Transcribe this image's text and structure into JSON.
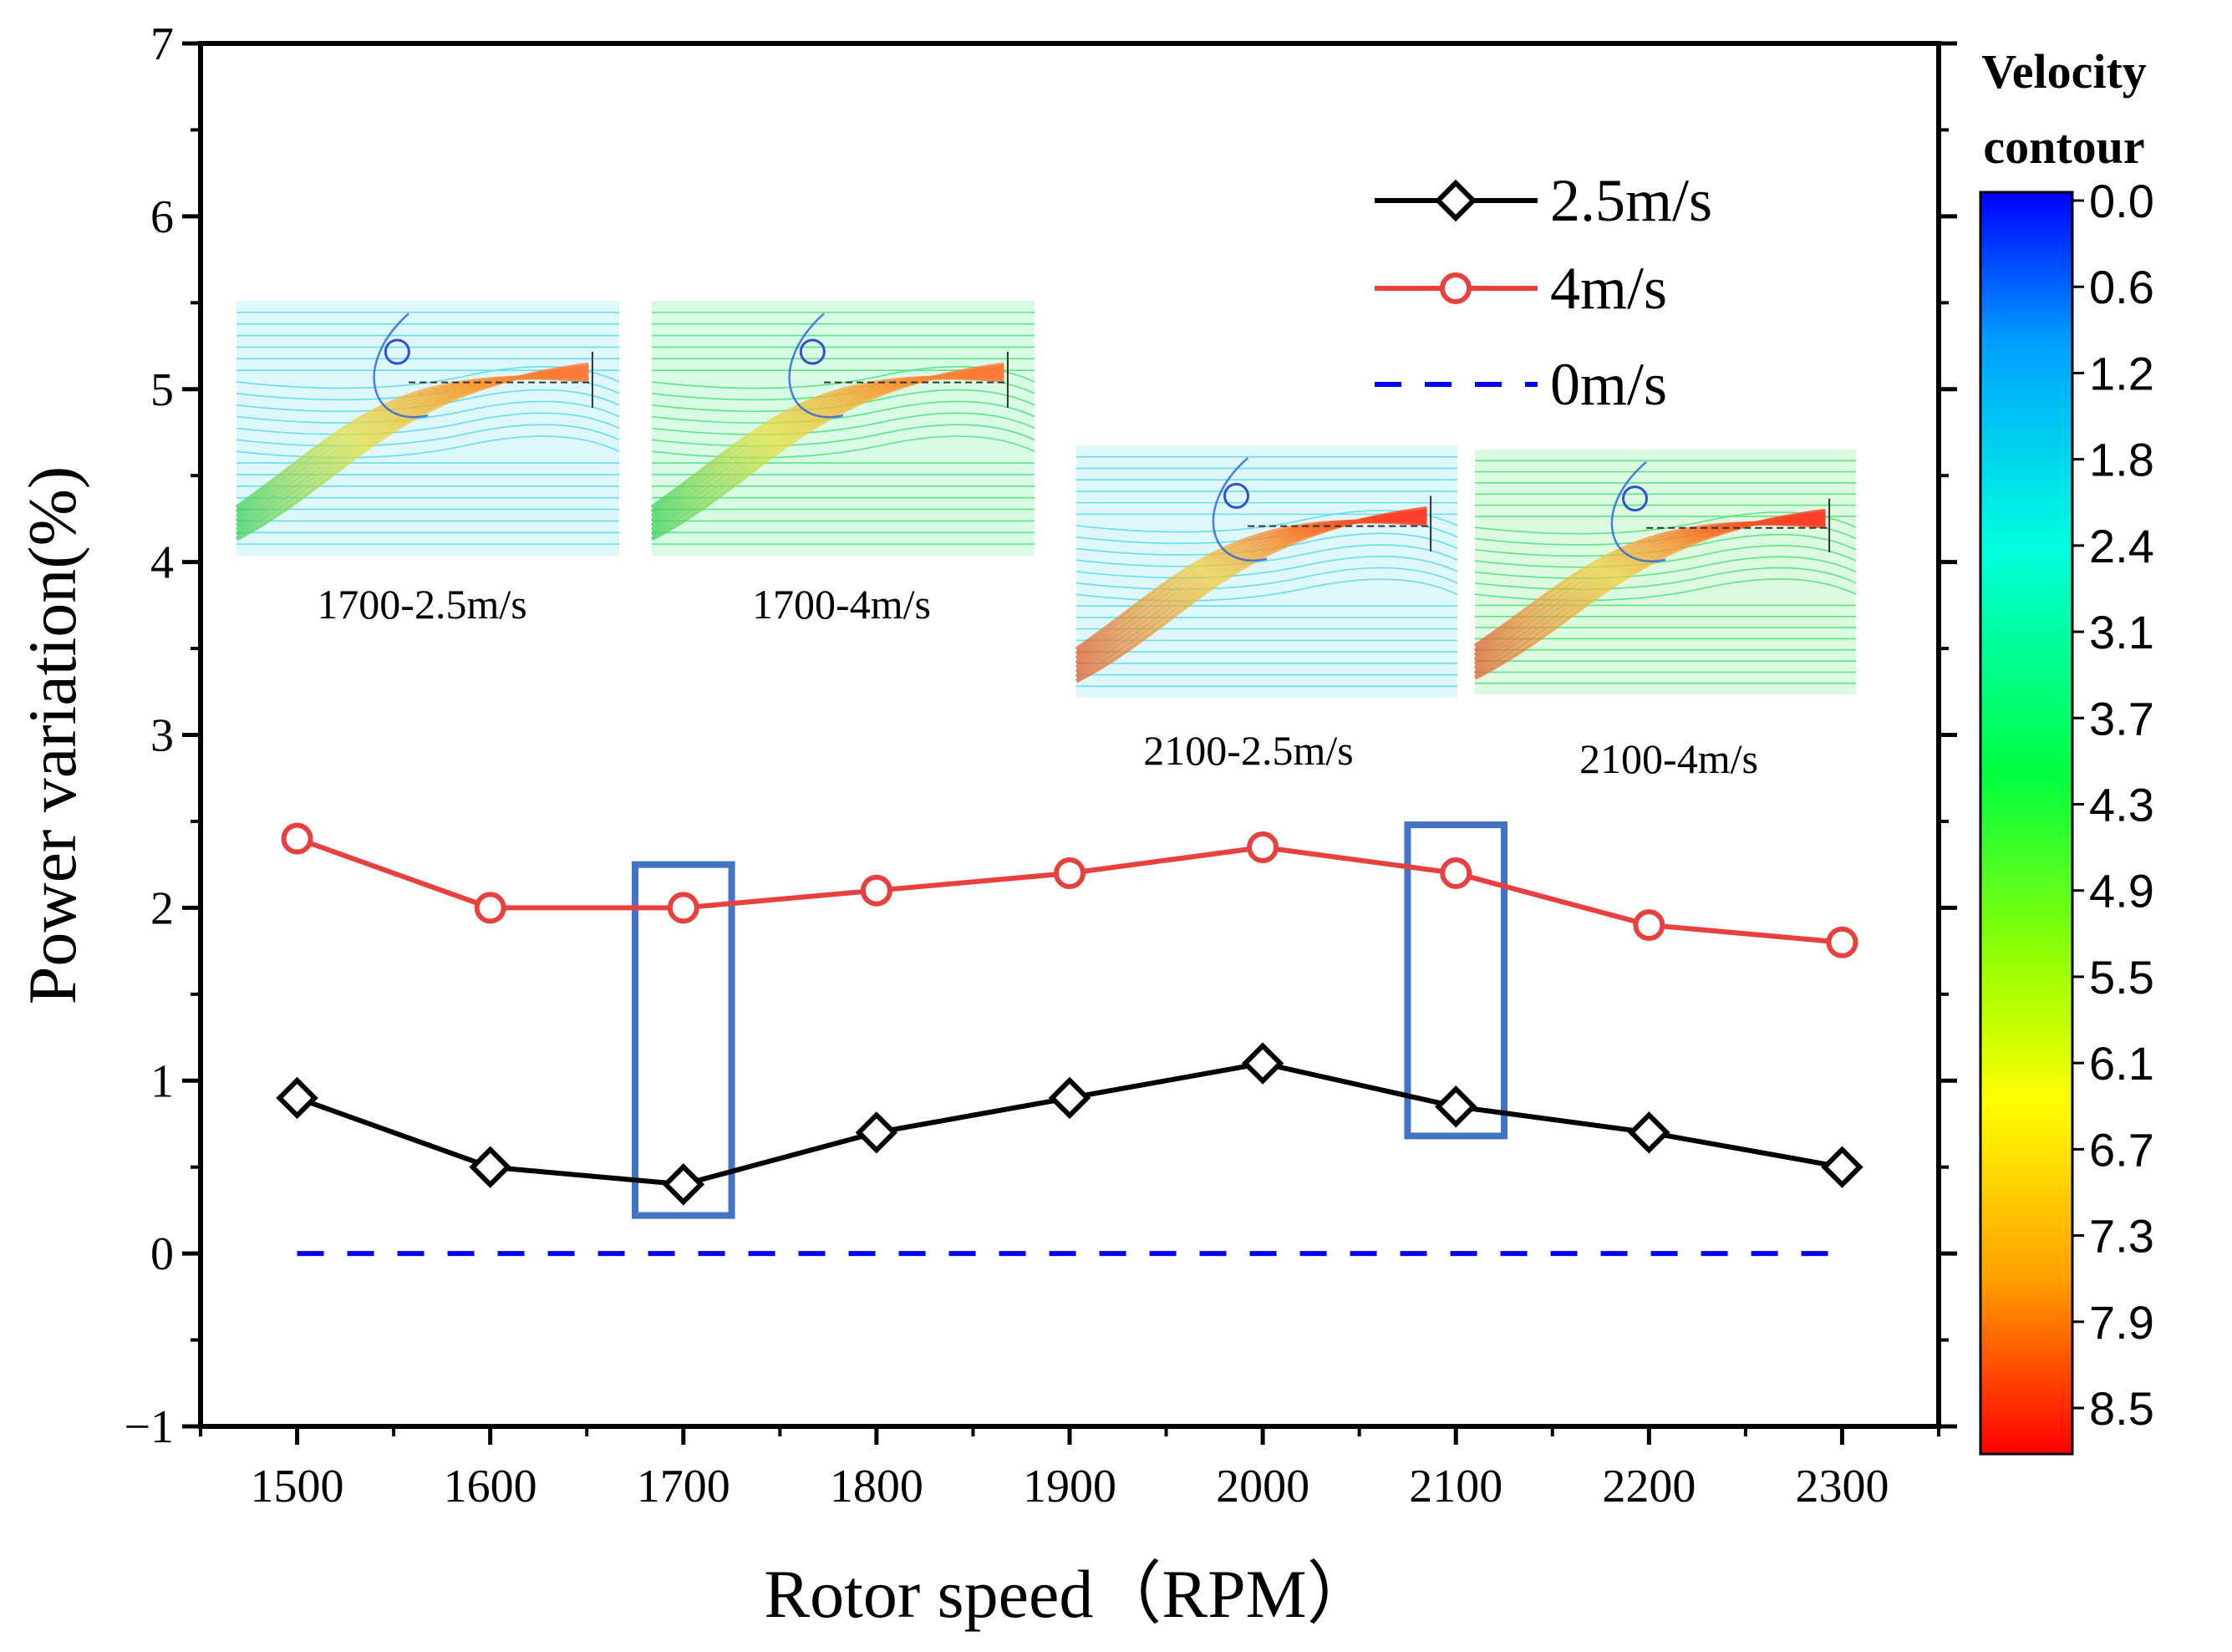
{
  "chart_data": {
    "type": "line",
    "xlabel": "Rotor speed（RPM）",
    "ylabel": "Power variation(%)",
    "x": [
      1500,
      1600,
      1700,
      1800,
      1900,
      2000,
      2100,
      2200,
      2300
    ],
    "xticks": [
      "1500",
      "1600",
      "1700",
      "1800",
      "1900",
      "2000",
      "2100",
      "2200",
      "2300"
    ],
    "xlim": [
      1450,
      2350
    ],
    "ylim": [
      -1,
      7
    ],
    "yticks": [
      "−1",
      "0",
      "1",
      "2",
      "3",
      "4",
      "5",
      "6",
      "7"
    ],
    "series": [
      {
        "name": "2.5m/s",
        "color": "#000000",
        "marker": "diamond",
        "values": [
          0.9,
          0.5,
          0.4,
          0.7,
          0.9,
          1.1,
          0.85,
          0.7,
          0.5
        ]
      },
      {
        "name": "4m/s",
        "color": "#e8403f",
        "marker": "circle",
        "values": [
          2.4,
          2.0,
          2.0,
          2.1,
          2.2,
          2.35,
          2.2,
          1.9,
          1.8
        ]
      },
      {
        "name": "0m/s",
        "color": "#0000ee",
        "marker": "none",
        "dashed": true,
        "values": [
          0,
          0,
          0,
          0,
          0,
          0,
          0,
          0,
          0
        ]
      }
    ],
    "highlight_boxes": [
      {
        "x_range": [
          1675,
          1725
        ],
        "y_range": [
          0.22,
          2.25
        ],
        "color": "#4472c4"
      },
      {
        "x_range": [
          2075,
          2125
        ],
        "y_range": [
          0.68,
          2.48
        ],
        "color": "#4472c4"
      }
    ],
    "insets": [
      {
        "label": "1700-2.5m/s"
      },
      {
        "label": "1700-4m/s"
      },
      {
        "label": "2100-2.5m/s"
      },
      {
        "label": "2100-4m/s"
      }
    ],
    "colorbar": {
      "title_line1": "Velocity",
      "title_line2": "contour",
      "labels": [
        "0.0",
        "0.6",
        "1.2",
        "1.8",
        "2.4",
        "3.1",
        "3.7",
        "4.3",
        "4.9",
        "5.5",
        "6.1",
        "6.7",
        "7.3",
        "7.9",
        "8.5"
      ],
      "colors": [
        "#0000ff",
        "#00c0ff",
        "#00ffe0",
        "#00ff40",
        "#a0ff00",
        "#ffff00",
        "#ffa000",
        "#ff0000"
      ]
    }
  }
}
